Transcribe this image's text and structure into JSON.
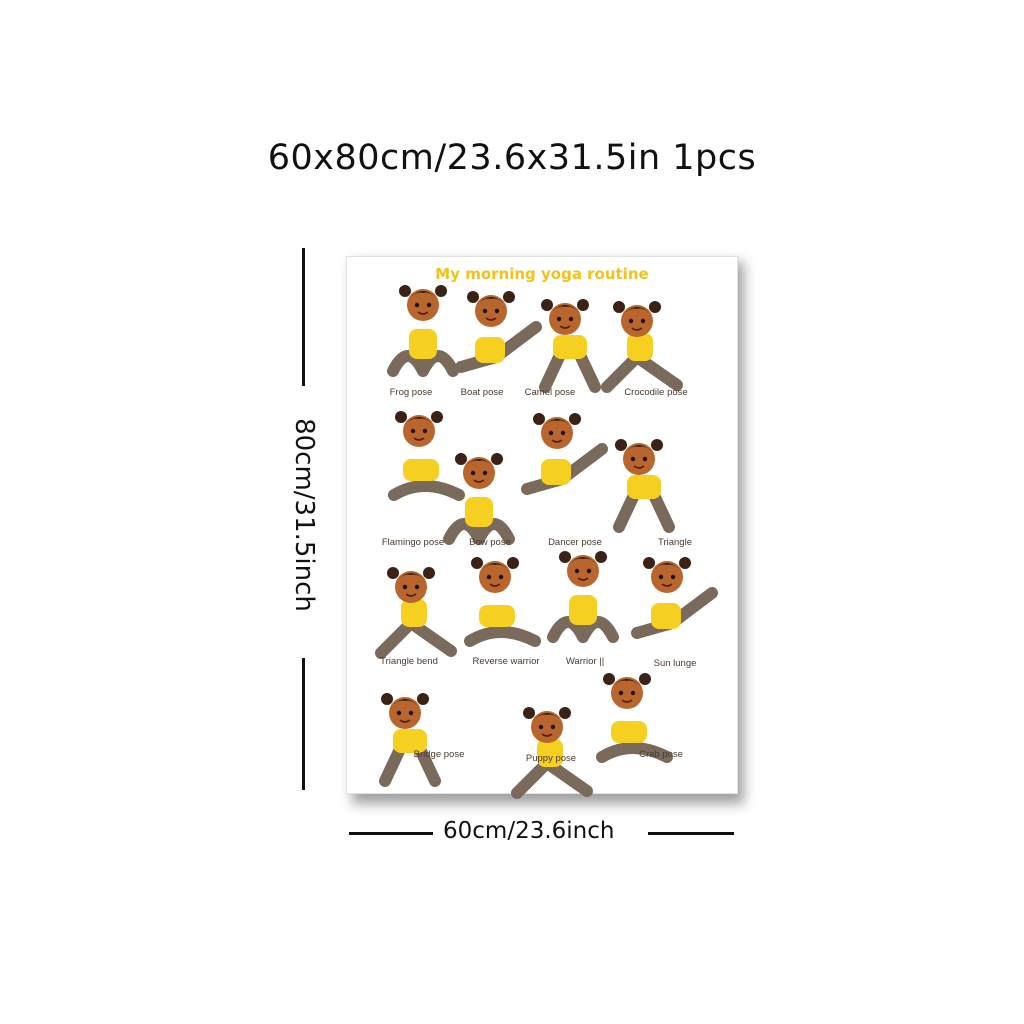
{
  "headline": "60x80cm/23.6x31.5in 1pcs",
  "height_label": "80cm/31.5inch",
  "width_label": "60cm/23.6inch",
  "poster": {
    "title": "My morning yoga routine",
    "poses": [
      {
        "label": "Frog pose"
      },
      {
        "label": "Boat pose"
      },
      {
        "label": "Camel pose"
      },
      {
        "label": "Crocodile pose"
      },
      {
        "label": "Flamingo pose"
      },
      {
        "label": "Bow pose"
      },
      {
        "label": "Dancer pose"
      },
      {
        "label": "Triangle"
      },
      {
        "label": "Triangle bend"
      },
      {
        "label": "Reverse warrior"
      },
      {
        "label": "Warrior ||"
      },
      {
        "label": "Sun lunge"
      },
      {
        "label": "Bridge pose"
      },
      {
        "label": "Puppy pose"
      },
      {
        "label": "Crab pose"
      }
    ]
  },
  "colors": {
    "title": "#f2c21a",
    "shirt": "#f5d020",
    "pants": "#7a6a5c",
    "skin": "#b8662e",
    "hair": "#3a2216"
  }
}
